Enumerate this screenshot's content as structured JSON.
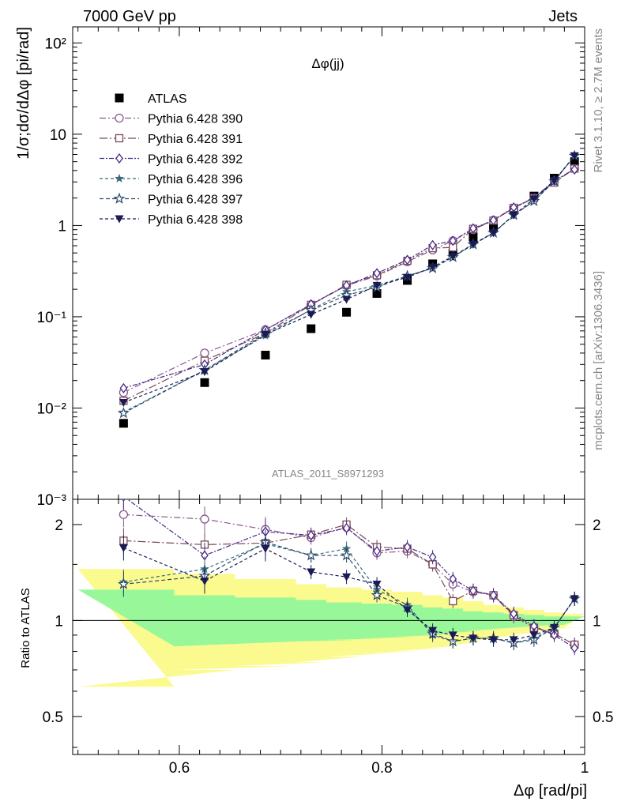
{
  "header": {
    "left": "7000 GeV pp",
    "right": "Jets"
  },
  "side_text": {
    "top": "Rivet 3.1.10, ≥ 2.7M events",
    "bottom": "mcplots.cern.ch [arXiv:1306.3436]"
  },
  "chart_data": [
    {
      "type": "scatter",
      "panel": "main",
      "title": "Δφ(jj)",
      "watermark": "ATLAS_2011_S8971293",
      "ylabel": "1/σ;dσ/dΔφ [pi/rad]",
      "xlabel": "",
      "xlim": [
        0.4948,
        1.0
      ],
      "ylim": [
        0.001,
        150
      ],
      "yscale": "log",
      "yticks": [
        {
          "v": 0.001,
          "label": "10⁻³"
        },
        {
          "v": 0.01,
          "label": "10⁻²"
        },
        {
          "v": 0.1,
          "label": "10⁻¹"
        },
        {
          "v": 1,
          "label": "1"
        },
        {
          "v": 10,
          "label": "10"
        },
        {
          "v": 100,
          "label": "10²"
        }
      ],
      "legend_position": "top-left",
      "x": [
        0.545,
        0.625,
        0.685,
        0.73,
        0.765,
        0.795,
        0.825,
        0.85,
        0.87,
        0.89,
        0.91,
        0.93,
        0.95,
        0.97,
        0.99
      ],
      "series": [
        {
          "name": "ATLAS",
          "color": "#000000",
          "marker": "filled-square",
          "dash": "none",
          "values": [
            0.0068,
            0.019,
            0.038,
            0.074,
            0.112,
            0.18,
            0.25,
            0.38,
            0.5,
            0.75,
            0.95,
            1.5,
            2.1,
            3.3,
            5.0
          ]
        },
        {
          "name": "Pythia 6.428 390",
          "color": "#8a5a8f",
          "marker": "open-circle",
          "dash": "8 3 2 3",
          "values": [
            0.0148,
            0.04,
            0.072,
            0.135,
            0.22,
            0.28,
            0.4,
            0.54,
            0.68,
            0.9,
            1.14,
            1.55,
            2.0,
            3.05,
            4.2
          ]
        },
        {
          "name": "Pythia 6.428 391",
          "color": "#7a4a55",
          "marker": "open-square",
          "dash": "10 3 2 3",
          "values": [
            0.012,
            0.033,
            0.066,
            0.135,
            0.224,
            0.285,
            0.41,
            0.565,
            0.575,
            0.92,
            1.13,
            1.56,
            2.0,
            2.95,
            4.2
          ]
        },
        {
          "name": "Pythia 6.428 392",
          "color": "#4a2a8a",
          "marker": "open-diamond",
          "dash": "6 2 2 2",
          "values": [
            0.0165,
            0.03,
            0.072,
            0.137,
            0.22,
            0.3,
            0.42,
            0.61,
            0.68,
            0.93,
            1.14,
            1.58,
            2.0,
            3.1,
            4.1
          ]
        },
        {
          "name": "Pythia 6.428 396",
          "color": "#3a6a7a",
          "marker": "filled-star",
          "dash": "4 3",
          "values": [
            0.009,
            0.026,
            0.062,
            0.12,
            0.188,
            0.22,
            0.28,
            0.34,
            0.45,
            0.63,
            0.83,
            1.3,
            1.85,
            3.05,
            5.8
          ]
        },
        {
          "name": "Pythia 6.428 397",
          "color": "#2a4a6a",
          "marker": "open-star",
          "dash": "5 3",
          "values": [
            0.0088,
            0.026,
            0.066,
            0.118,
            0.172,
            0.21,
            0.28,
            0.34,
            0.45,
            0.62,
            0.83,
            1.3,
            1.85,
            3.05,
            5.8
          ]
        },
        {
          "name": "Pythia 6.428 398",
          "color": "#1a1a55",
          "marker": "filled-triangle-down",
          "dash": "4 3",
          "values": [
            0.0115,
            0.025,
            0.064,
            0.106,
            0.155,
            0.22,
            0.27,
            0.35,
            0.46,
            0.62,
            0.83,
            1.3,
            1.95,
            3.1,
            5.8
          ]
        }
      ]
    },
    {
      "type": "scatter",
      "panel": "ratio",
      "ylabel": "Ratio to ATLAS",
      "xlabel": "Δφ [rad/pi]",
      "xlim": [
        0.4948,
        1.0
      ],
      "ylim": [
        0.38,
        2.4
      ],
      "yscale": "log",
      "yticks": [
        {
          "v": 0.5,
          "label": "0.5"
        },
        {
          "v": 1,
          "label": "1"
        },
        {
          "v": 2,
          "label": "2"
        }
      ],
      "xticks": [
        {
          "v": 0.6,
          "label": "0.6"
        },
        {
          "v": 0.8,
          "label": "0.8"
        },
        {
          "v": 1.0,
          "label": "1"
        }
      ],
      "reference_line": 1,
      "uncertainty_bands": [
        {
          "x_edges": [
            0.5,
            0.595,
            0.655,
            0.715,
            0.745,
            0.78,
            0.81,
            0.84,
            0.86,
            0.88,
            0.9,
            0.92,
            0.94,
            0.96,
            0.98,
            1.0
          ],
          "yellow_lo": [
            0.62,
            0.7,
            0.72,
            0.74,
            0.77,
            0.79,
            0.8,
            0.82,
            0.83,
            0.86,
            0.88,
            0.9,
            0.92,
            0.94,
            0.95
          ],
          "yellow_hi": [
            1.45,
            1.4,
            1.35,
            1.3,
            1.27,
            1.25,
            1.23,
            1.2,
            1.18,
            1.15,
            1.12,
            1.1,
            1.08,
            1.06,
            1.05
          ],
          "green_lo": [
            0.83,
            0.83,
            0.86,
            0.86,
            0.87,
            0.88,
            0.89,
            0.9,
            0.91,
            0.93,
            0.94,
            0.95,
            0.96,
            0.97,
            0.97
          ],
          "green_hi": [
            1.25,
            1.2,
            1.18,
            1.16,
            1.14,
            1.13,
            1.12,
            1.1,
            1.09,
            1.07,
            1.06,
            1.05,
            1.04,
            1.03,
            1.03
          ]
        }
      ],
      "series": [
        {
          "name": "Pythia 6.428 390",
          "values": [
            2.15,
            2.08,
            1.93,
            1.82,
            1.96,
            1.63,
            1.65,
            1.5,
            1.3,
            1.23,
            1.2,
            1.03,
            0.95,
            0.91,
            0.84
          ]
        },
        {
          "name": "Pythia 6.428 391",
          "values": [
            1.78,
            1.73,
            1.75,
            1.86,
            2.0,
            1.7,
            1.68,
            1.5,
            1.15,
            1.24,
            1.2,
            1.04,
            0.95,
            0.91,
            0.84
          ]
        },
        {
          "name": "Pythia 6.428 392",
          "values": [
            2.45,
            1.6,
            1.9,
            1.85,
            1.95,
            1.65,
            1.7,
            1.58,
            1.35,
            1.24,
            1.2,
            1.05,
            0.96,
            0.9,
            0.82
          ]
        },
        {
          "name": "Pythia 6.428 396",
          "values": [
            1.32,
            1.45,
            1.74,
            1.6,
            1.68,
            1.25,
            1.12,
            0.9,
            0.86,
            0.88,
            0.88,
            0.85,
            0.88,
            0.95,
            1.17
          ]
        },
        {
          "name": "Pythia 6.428 397",
          "values": [
            1.3,
            1.38,
            1.76,
            1.6,
            1.6,
            1.2,
            1.1,
            0.91,
            0.86,
            0.88,
            0.88,
            0.85,
            0.87,
            0.95,
            1.17
          ]
        },
        {
          "name": "Pythia 6.428 398",
          "values": [
            1.69,
            1.33,
            1.68,
            1.42,
            1.37,
            1.3,
            1.08,
            0.93,
            0.9,
            0.88,
            0.87,
            0.87,
            0.9,
            0.95,
            1.17
          ]
        }
      ]
    }
  ]
}
